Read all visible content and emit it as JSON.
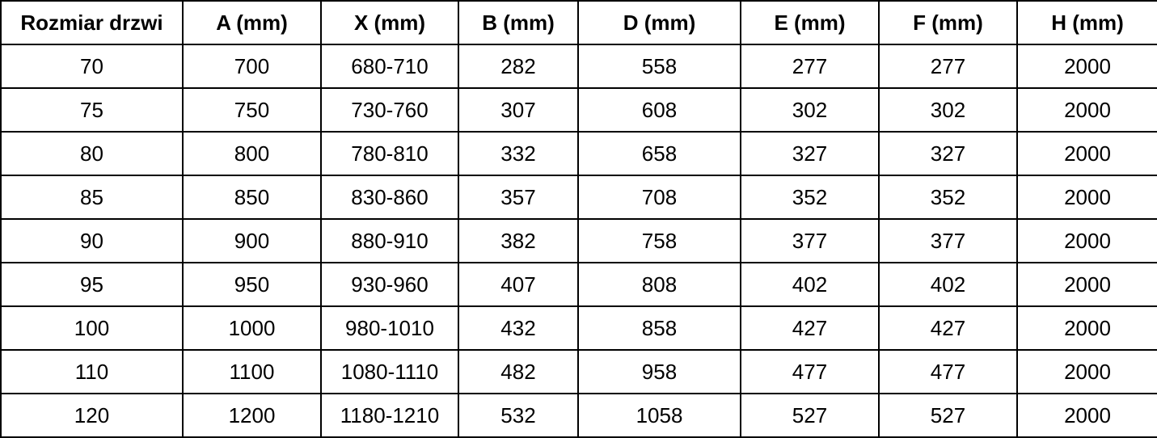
{
  "table": {
    "columns": [
      "Rozmiar drzwi",
      "A (mm)",
      "X (mm)",
      "B (mm)",
      "D (mm)",
      "E (mm)",
      "F (mm)",
      "H (mm)"
    ],
    "rows": [
      [
        "70",
        "700",
        "680-710",
        "282",
        "558",
        "277",
        "277",
        "2000"
      ],
      [
        "75",
        "750",
        "730-760",
        "307",
        "608",
        "302",
        "302",
        "2000"
      ],
      [
        "80",
        "800",
        "780-810",
        "332",
        "658",
        "327",
        "327",
        "2000"
      ],
      [
        "85",
        "850",
        "830-860",
        "357",
        "708",
        "352",
        "352",
        "2000"
      ],
      [
        "90",
        "900",
        "880-910",
        "382",
        "758",
        "377",
        "377",
        "2000"
      ],
      [
        "95",
        "950",
        "930-960",
        "407",
        "808",
        "402",
        "402",
        "2000"
      ],
      [
        "100",
        "1000",
        "980-1010",
        "432",
        "858",
        "427",
        "427",
        "2000"
      ],
      [
        "110",
        "1100",
        "1080-1110",
        "482",
        "958",
        "477",
        "477",
        "2000"
      ],
      [
        "120",
        "1200",
        "1180-1210",
        "532",
        "1058",
        "527",
        "527",
        "2000"
      ]
    ],
    "colors": {
      "border": "#000000",
      "text": "#000000",
      "background": "#ffffff"
    }
  }
}
